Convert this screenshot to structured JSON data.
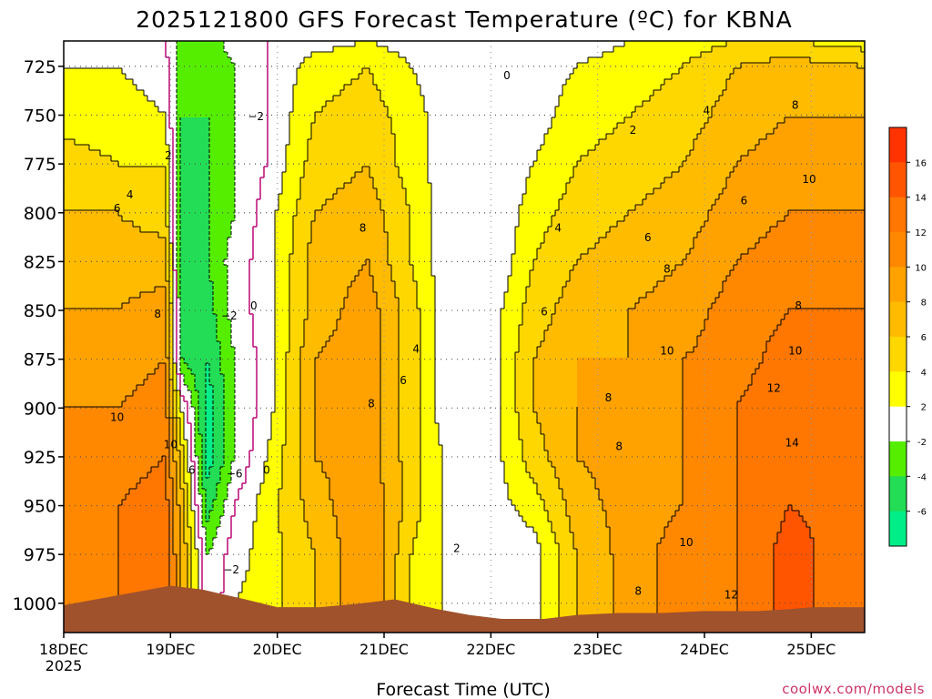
{
  "chart_data": {
    "type": "heatmap",
    "title": "2025121800 GFS Forecast Temperature (ºC) for KBNA",
    "xlabel": "Forecast Time (UTC)",
    "ylabel": "",
    "credit": "coolwx.com/models",
    "x_ticks": [
      "18DEC",
      "19DEC",
      "20DEC",
      "21DEC",
      "22DEC",
      "23DEC",
      "24DEC",
      "25DEC"
    ],
    "x_year": "2025",
    "x_range_days": [
      0,
      7.5
    ],
    "y_ticks": [
      "725",
      "750",
      "775",
      "800",
      "825",
      "850",
      "875",
      "900",
      "925",
      "950",
      "975",
      "1000"
    ],
    "y_range_hpa": [
      712,
      1015
    ],
    "colorbar": {
      "ticks": [
        "16",
        "14",
        "12",
        "10",
        "8",
        "6",
        "4",
        "2",
        "-2",
        "-4",
        "-6"
      ],
      "bands": [
        {
          "range": "16+",
          "color": "#ff3300"
        },
        {
          "range": "14 to 16",
          "color": "#ff5500"
        },
        {
          "range": "12 to 14",
          "color": "#ff7700"
        },
        {
          "range": "10 to 12",
          "color": "#ff8800"
        },
        {
          "range": "8 to 10",
          "color": "#ffa200"
        },
        {
          "range": "6 to 8",
          "color": "#ffbb00"
        },
        {
          "range": "4 to 6",
          "color": "#ffd700"
        },
        {
          "range": "2 to 4",
          "color": "#ffff00"
        },
        {
          "range": "-2 to 2",
          "color": "#ffffff"
        },
        {
          "range": "-4 to -2",
          "color": "#55ee00"
        },
        {
          "range": "-6 to -4",
          "color": "#22dd55"
        },
        {
          "range": "< -6",
          "color": "#00ee88"
        }
      ]
    },
    "terrain_color": "#a0522d",
    "freezing_line_color": "#c0187f",
    "temperature_profiles": [
      {
        "day": 0.0,
        "t": [
          1,
          2,
          3,
          5,
          6,
          7,
          8,
          9,
          10,
          10,
          11,
          11,
          11
        ]
      },
      {
        "day": 0.5,
        "t": [
          1,
          2,
          3,
          4,
          6,
          7,
          8,
          9,
          10,
          11,
          12,
          12,
          12
        ]
      },
      {
        "day": 0.95,
        "t": [
          0,
          1,
          2,
          4,
          5,
          7,
          9,
          10,
          11,
          12,
          13,
          13,
          13
        ]
      },
      {
        "day": 1.1,
        "t": [
          -3,
          -4,
          -4,
          -5,
          -5,
          -5,
          -4,
          -4,
          2,
          5,
          7,
          8,
          8
        ]
      },
      {
        "day": 1.35,
        "t": [
          -3,
          -4,
          -4,
          -4,
          -4,
          -4,
          -5,
          -6,
          -7,
          -7,
          -5,
          -2,
          -2
        ]
      },
      {
        "day": 1.6,
        "t": [
          -1,
          -2,
          -2,
          -2,
          -2,
          -1,
          -1,
          -2,
          -2,
          -2,
          0,
          1,
          2
        ]
      },
      {
        "day": 1.9,
        "t": [
          0,
          0,
          0,
          0,
          1,
          1,
          1,
          1,
          1,
          2,
          3,
          3,
          3
        ]
      },
      {
        "day": 2.35,
        "t": [
          1,
          3,
          4,
          5,
          6,
          7,
          7,
          8,
          8,
          8,
          7,
          6,
          6
        ]
      },
      {
        "day": 2.85,
        "t": [
          2,
          4,
          5,
          6,
          7,
          8,
          9,
          9,
          9,
          9,
          10,
          10,
          10
        ]
      },
      {
        "day": 3.25,
        "t": [
          1,
          2,
          3,
          3,
          4,
          4,
          5,
          5,
          5,
          5,
          5,
          4,
          4
        ]
      },
      {
        "day": 3.55,
        "t": [
          1,
          1,
          1,
          1,
          1,
          1,
          1,
          1,
          1,
          2,
          2,
          2,
          2
        ]
      },
      {
        "day": 4.0,
        "t": [
          0,
          0,
          0,
          0,
          0,
          0,
          1,
          1,
          1,
          1,
          1,
          0,
          0
        ]
      },
      {
        "day": 4.4,
        "t": [
          0,
          1,
          1,
          2,
          3,
          4,
          5,
          6,
          6,
          5,
          3,
          1,
          1
        ]
      },
      {
        "day": 4.8,
        "t": [
          1,
          2,
          3,
          4,
          5,
          6,
          7,
          8,
          8,
          8,
          7,
          6,
          6
        ]
      },
      {
        "day": 5.3,
        "t": [
          2,
          3,
          4,
          5,
          6,
          7,
          8,
          8,
          8,
          9,
          9,
          9,
          9
        ]
      },
      {
        "day": 5.8,
        "t": [
          3,
          4,
          5,
          6,
          7,
          8,
          9,
          10,
          10,
          10,
          10,
          11,
          11
        ]
      },
      {
        "day": 6.3,
        "t": [
          4,
          6,
          7,
          8,
          9,
          10,
          11,
          11,
          12,
          12,
          12,
          12,
          12
        ]
      },
      {
        "day": 6.8,
        "t": [
          4,
          7,
          8,
          9,
          10,
          11,
          12,
          13,
          14,
          14,
          14,
          15,
          15
        ]
      },
      {
        "day": 7.5,
        "t": [
          3,
          6,
          8,
          9,
          10,
          11,
          12,
          13,
          13,
          13,
          13,
          12,
          12
        ]
      }
    ],
    "profile_levels_hpa": [
      712,
      725,
      750,
      775,
      800,
      825,
      850,
      875,
      900,
      925,
      950,
      975,
      1000
    ],
    "contour_labels": [
      {
        "text": "0",
        "day": 4.15,
        "p": 730
      },
      {
        "text": "−2",
        "day": 1.8,
        "p": 751
      },
      {
        "text": "2",
        "day": 0.98,
        "p": 771
      },
      {
        "text": "4",
        "day": 0.62,
        "p": 791
      },
      {
        "text": "6",
        "day": 0.5,
        "p": 798
      },
      {
        "text": "8",
        "day": 0.88,
        "p": 852
      },
      {
        "text": "10",
        "day": 0.5,
        "p": 905
      },
      {
        "text": "10",
        "day": 1.0,
        "p": 919
      },
      {
        "text": "6",
        "day": 1.2,
        "p": 932
      },
      {
        "text": "−2",
        "day": 1.55,
        "p": 853
      },
      {
        "text": "0",
        "day": 1.78,
        "p": 848
      },
      {
        "text": "−6",
        "day": 1.6,
        "p": 934
      },
      {
        "text": "0",
        "day": 1.9,
        "p": 932
      },
      {
        "text": "−2",
        "day": 1.57,
        "p": 983
      },
      {
        "text": "8",
        "day": 2.8,
        "p": 808
      },
      {
        "text": "4",
        "day": 3.3,
        "p": 870
      },
      {
        "text": "6",
        "day": 3.18,
        "p": 886
      },
      {
        "text": "8",
        "day": 2.88,
        "p": 898
      },
      {
        "text": "2",
        "day": 3.68,
        "p": 972
      },
      {
        "text": "2",
        "day": 5.33,
        "p": 758
      },
      {
        "text": "4",
        "day": 6.02,
        "p": 748
      },
      {
        "text": "4",
        "day": 4.63,
        "p": 808
      },
      {
        "text": "6",
        "day": 5.47,
        "p": 813
      },
      {
        "text": "6",
        "day": 6.37,
        "p": 794
      },
      {
        "text": "6",
        "day": 4.5,
        "p": 851
      },
      {
        "text": "8",
        "day": 5.65,
        "p": 829
      },
      {
        "text": "8",
        "day": 6.85,
        "p": 745
      },
      {
        "text": "8",
        "day": 6.88,
        "p": 848
      },
      {
        "text": "8",
        "day": 5.1,
        "p": 895
      },
      {
        "text": "8",
        "day": 5.2,
        "p": 920
      },
      {
        "text": "8",
        "day": 5.38,
        "p": 994
      },
      {
        "text": "10",
        "day": 6.98,
        "p": 783
      },
      {
        "text": "10",
        "day": 5.65,
        "p": 871
      },
      {
        "text": "10",
        "day": 6.85,
        "p": 871
      },
      {
        "text": "10",
        "day": 5.83,
        "p": 969
      },
      {
        "text": "12",
        "day": 6.65,
        "p": 890
      },
      {
        "text": "12",
        "day": 6.25,
        "p": 996
      },
      {
        "text": "14",
        "day": 6.82,
        "p": 918
      }
    ]
  }
}
